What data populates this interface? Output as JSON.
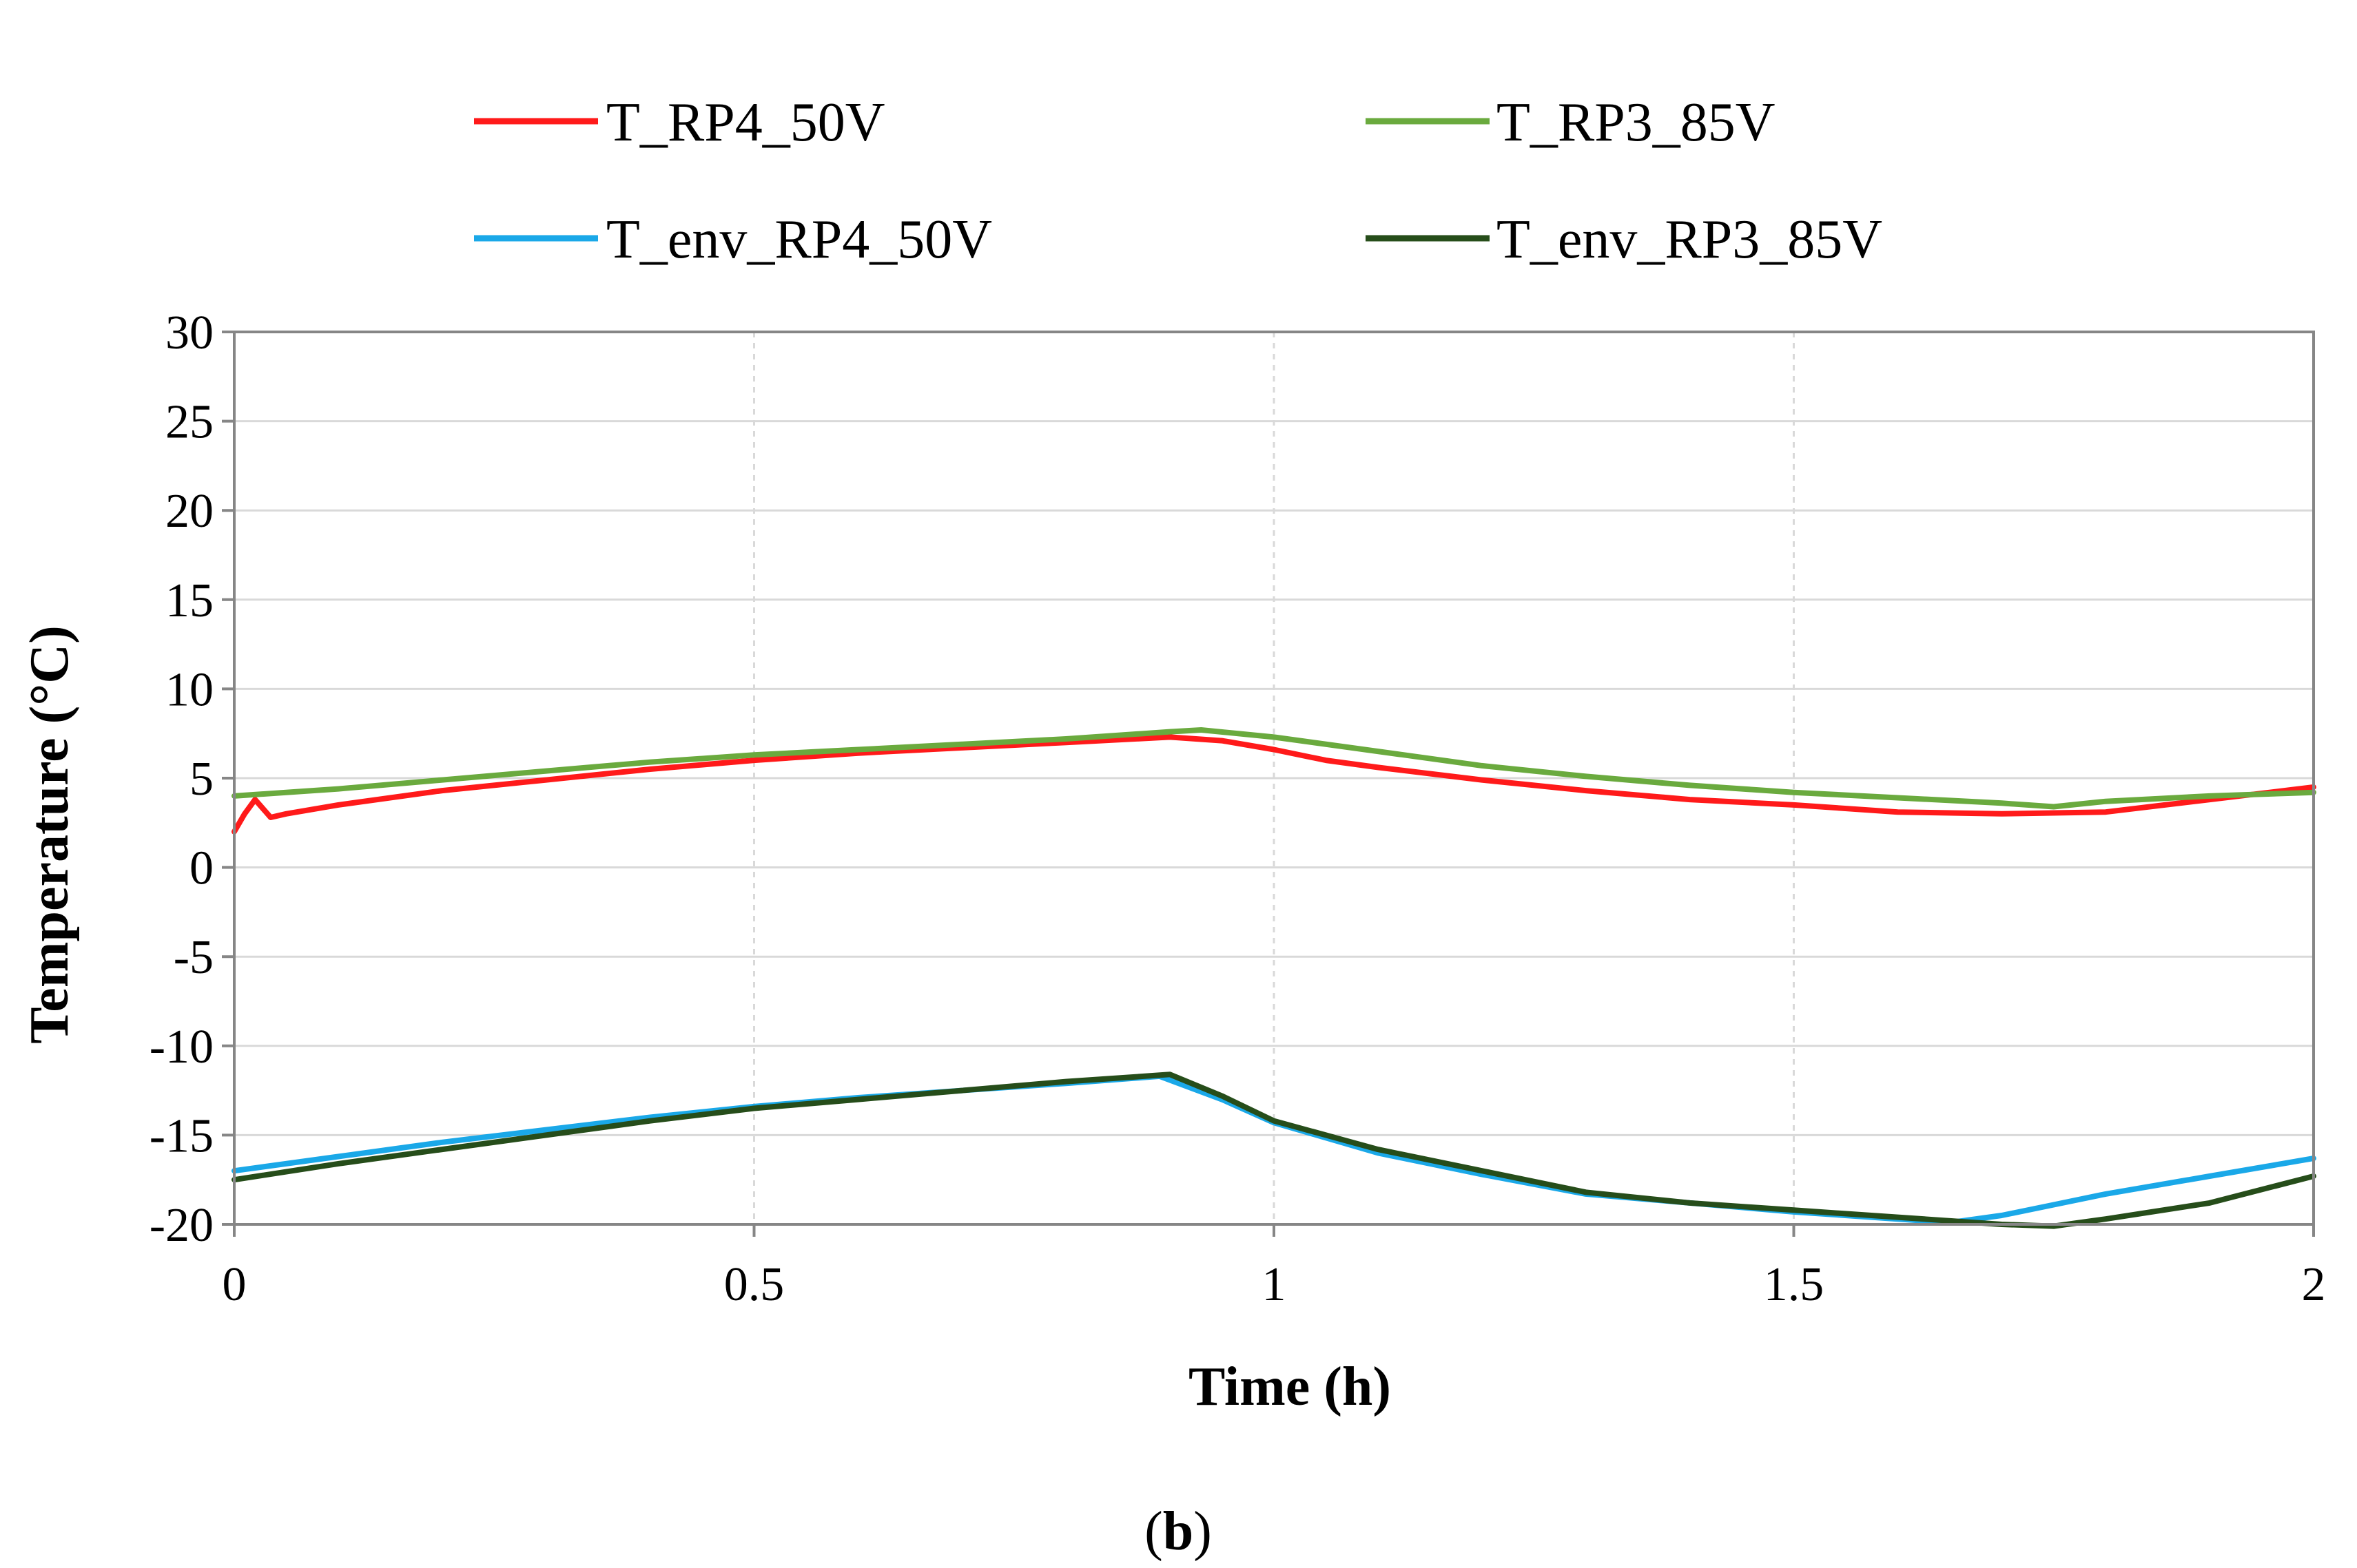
{
  "chart_data": {
    "type": "line",
    "title": "",
    "xlabel": "Time (h)",
    "ylabel": "Temperature (°C)",
    "xlim": [
      0,
      2
    ],
    "ylim": [
      -20,
      30
    ],
    "x_ticks": [
      0,
      0.5,
      1,
      1.5,
      2
    ],
    "x_tick_labels": [
      "0",
      "0.5",
      "1",
      "1.5",
      "2"
    ],
    "y_ticks": [
      30,
      25,
      20,
      15,
      10,
      5,
      0,
      -5,
      -10,
      -15,
      -20
    ],
    "y_tick_labels": [
      "30",
      "25",
      "20",
      "15",
      "10",
      "5",
      "0",
      "-5",
      "-10",
      "-15",
      "-20"
    ],
    "grid": true,
    "legend_position": "top",
    "caption": {
      "open": "(",
      "letter": "b",
      "close": ")"
    },
    "series": [
      {
        "name": "T_RP4_50V",
        "color": "#ff1a1a",
        "x": [
          0,
          0.01,
          0.02,
          0.035,
          0.05,
          0.1,
          0.2,
          0.3,
          0.4,
          0.5,
          0.6,
          0.7,
          0.8,
          0.9,
          0.95,
          1.0,
          1.05,
          1.1,
          1.2,
          1.3,
          1.4,
          1.5,
          1.6,
          1.7,
          1.8,
          1.9,
          2.0
        ],
        "y": [
          2.0,
          3.0,
          3.8,
          2.8,
          3.0,
          3.5,
          4.3,
          4.9,
          5.5,
          6.0,
          6.4,
          6.7,
          7.0,
          7.3,
          7.1,
          6.6,
          6.0,
          5.6,
          4.9,
          4.3,
          3.8,
          3.5,
          3.1,
          3.0,
          3.1,
          3.8,
          4.5
        ]
      },
      {
        "name": "T_RP3_85V",
        "color": "#6aaa3e",
        "x": [
          0,
          0.05,
          0.1,
          0.2,
          0.3,
          0.4,
          0.5,
          0.6,
          0.7,
          0.8,
          0.9,
          0.93,
          1.0,
          1.1,
          1.2,
          1.3,
          1.4,
          1.5,
          1.6,
          1.7,
          1.75,
          1.8,
          1.9,
          2.0
        ],
        "y": [
          4.0,
          4.2,
          4.4,
          4.9,
          5.4,
          5.9,
          6.3,
          6.6,
          6.9,
          7.2,
          7.6,
          7.7,
          7.3,
          6.5,
          5.7,
          5.1,
          4.6,
          4.2,
          3.9,
          3.6,
          3.4,
          3.7,
          4.0,
          4.2
        ]
      },
      {
        "name": "T_env_RP4_50V",
        "color": "#1aa8e8",
        "x": [
          0,
          0.1,
          0.2,
          0.3,
          0.4,
          0.5,
          0.6,
          0.7,
          0.8,
          0.89,
          0.95,
          1.0,
          1.1,
          1.2,
          1.3,
          1.4,
          1.5,
          1.6,
          1.65,
          1.7,
          1.75,
          1.8,
          1.9,
          2.0
        ],
        "y": [
          -17.0,
          -16.2,
          -15.4,
          -14.7,
          -14.0,
          -13.4,
          -12.9,
          -12.5,
          -12.1,
          -11.7,
          -13.0,
          -14.3,
          -16.0,
          -17.2,
          -18.3,
          -18.8,
          -19.3,
          -19.7,
          -19.9,
          -19.5,
          -18.9,
          -18.3,
          -17.3,
          -16.3
        ]
      },
      {
        "name": "T_env_RP3_85V",
        "color": "#264d1a",
        "x": [
          0,
          0.1,
          0.2,
          0.3,
          0.4,
          0.5,
          0.6,
          0.7,
          0.8,
          0.9,
          0.95,
          1.0,
          1.1,
          1.2,
          1.3,
          1.4,
          1.5,
          1.6,
          1.7,
          1.75,
          1.8,
          1.9,
          2.0
        ],
        "y": [
          -17.5,
          -16.6,
          -15.8,
          -15.0,
          -14.2,
          -13.5,
          -13.0,
          -12.5,
          -12.0,
          -11.6,
          -12.8,
          -14.2,
          -15.8,
          -17.0,
          -18.2,
          -18.8,
          -19.2,
          -19.6,
          -20.0,
          -20.1,
          -19.7,
          -18.8,
          -17.3
        ]
      }
    ]
  }
}
